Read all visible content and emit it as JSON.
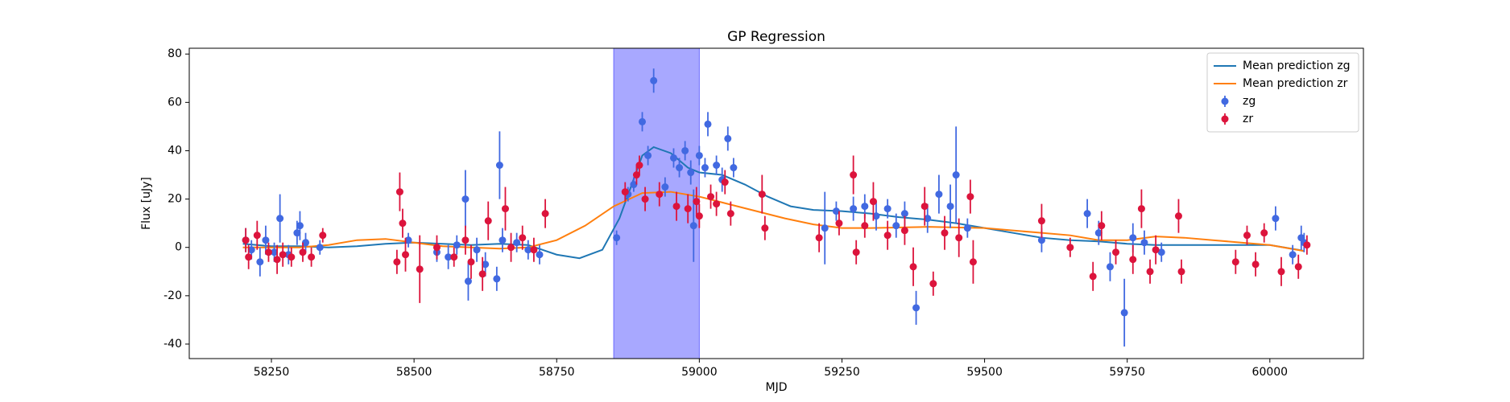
{
  "chart_data": {
    "type": "scatter",
    "title": "GP Regression",
    "xlabel": "MJD",
    "ylabel": "Flux [uJy]",
    "xlim": [
      58106,
      60164
    ],
    "ylim": [
      -46,
      82.4
    ],
    "xticks": [
      58250,
      58500,
      58750,
      59000,
      59250,
      59500,
      59750,
      60000
    ],
    "yticks": [
      -40,
      -20,
      0,
      20,
      40,
      60,
      80
    ],
    "legend": "upper right",
    "span": {
      "x": [
        58850,
        59000
      ],
      "color": "#a8a8ff"
    },
    "series": [
      {
        "name": "Mean prediction zg",
        "type": "line",
        "color": "#1f77b4",
        "x": [
          58200,
          58250,
          58300,
          58350,
          58400,
          58450,
          58500,
          58550,
          58600,
          58650,
          58700,
          58750,
          58790,
          58830,
          58860,
          58880,
          58900,
          58920,
          58950,
          58980,
          59000,
          59040,
          59080,
          59120,
          59160,
          59200,
          59250,
          59300,
          59350,
          59400,
          59450,
          59500,
          59550,
          59600,
          59650,
          59700,
          59750,
          59800,
          59850,
          59900,
          59950,
          60000,
          60050,
          60060
        ],
        "values": [
          1.5,
          0.5,
          0.5,
          0,
          0.5,
          1.5,
          2,
          1.5,
          1,
          1.5,
          1,
          -3,
          -4.5,
          -1,
          12,
          25,
          38,
          41.5,
          39,
          33,
          31,
          30,
          26,
          21,
          17,
          15.5,
          15,
          14,
          12.5,
          11.5,
          10,
          8,
          6,
          4,
          3,
          2.5,
          1.5,
          1,
          1,
          1,
          1,
          1,
          -1,
          -1.5
        ]
      },
      {
        "name": "Mean prediction zr",
        "type": "line",
        "color": "#ff7f0e",
        "x": [
          58200,
          58300,
          58350,
          58400,
          58450,
          58500,
          58550,
          58600,
          58650,
          58700,
          58750,
          58800,
          58850,
          58900,
          58950,
          59000,
          59050,
          59100,
          59150,
          59200,
          59250,
          59300,
          59400,
          59500,
          59600,
          59650,
          59700,
          59750,
          59800,
          59850,
          59900,
          59950,
          60000,
          60060
        ],
        "values": [
          0,
          0,
          1,
          3,
          3.5,
          2,
          0.5,
          0,
          -0.5,
          0,
          3,
          9,
          17,
          22.5,
          23,
          21,
          18,
          15,
          12,
          9.5,
          8,
          8,
          8.5,
          8,
          6,
          5,
          3,
          3,
          4.5,
          4,
          3,
          2,
          1,
          -1.5
        ]
      },
      {
        "name": "zg",
        "type": "errorbar",
        "color": "#4169e1",
        "x": [
          58205,
          58215,
          58230,
          58240,
          58255,
          58265,
          58280,
          58295,
          58300,
          58310,
          58335,
          58490,
          58540,
          58560,
          58575,
          58590,
          58595,
          58610,
          58625,
          58645,
          58650,
          58655,
          58680,
          58700,
          58720,
          58855,
          58875,
          58885,
          58900,
          58910,
          58920,
          58940,
          58955,
          58965,
          58975,
          58985,
          58990,
          59000,
          59010,
          59015,
          59030,
          59040,
          59050,
          59060,
          59220,
          59240,
          59270,
          59290,
          59310,
          59330,
          59345,
          59360,
          59380,
          59400,
          59420,
          59440,
          59450,
          59470,
          59600,
          59680,
          59700,
          59720,
          59745,
          59760,
          59780,
          59810,
          60010,
          60040,
          60055,
          60060
        ],
        "values": [
          3,
          -1,
          -6,
          3,
          -2,
          12,
          -3,
          6,
          9,
          2,
          0,
          3,
          -2,
          -4,
          1,
          20,
          -14,
          -1,
          -7,
          -13,
          34,
          3,
          2,
          -1,
          -3,
          4,
          22,
          26,
          52,
          38,
          69,
          25,
          37,
          33,
          40,
          31,
          9,
          38,
          33,
          51,
          34,
          28,
          45,
          33,
          8,
          15,
          16,
          17,
          13,
          16,
          9,
          14,
          -25,
          12,
          22,
          17,
          30,
          8,
          3,
          14,
          6,
          -8,
          -27,
          4,
          2,
          -2,
          12,
          -3,
          4,
          2
        ],
        "errors": [
          5,
          4,
          6,
          6,
          4,
          10,
          4,
          5,
          6,
          4,
          3,
          3,
          4,
          5,
          4,
          12,
          8,
          5,
          5,
          5,
          14,
          5,
          4,
          4,
          4,
          3,
          3,
          3,
          4,
          4,
          5,
          4,
          4,
          4,
          4,
          5,
          15,
          4,
          4,
          5,
          4,
          5,
          5,
          4,
          15,
          4,
          5,
          5,
          6,
          4,
          5,
          5,
          7,
          6,
          8,
          9,
          20,
          4,
          5,
          6,
          5,
          6,
          14,
          6,
          5,
          4,
          5,
          4,
          5,
          4
        ]
      },
      {
        "name": "zr",
        "type": "errorbar",
        "color": "#dc143c",
        "x": [
          58205,
          58210,
          58225,
          58245,
          58260,
          58270,
          58285,
          58305,
          58320,
          58340,
          58470,
          58475,
          58480,
          58485,
          58510,
          58540,
          58570,
          58590,
          58600,
          58620,
          58630,
          58660,
          58670,
          58690,
          58710,
          58730,
          58870,
          58890,
          58895,
          58905,
          58930,
          58960,
          58980,
          58995,
          59000,
          59020,
          59030,
          59045,
          59055,
          59110,
          59115,
          59210,
          59245,
          59270,
          59275,
          59290,
          59305,
          59330,
          59360,
          59375,
          59395,
          59410,
          59430,
          59455,
          59475,
          59480,
          59600,
          59650,
          59690,
          59705,
          59730,
          59760,
          59775,
          59790,
          59800,
          59840,
          59845,
          59940,
          59960,
          59975,
          59990,
          60020,
          60050,
          60065
        ],
        "values": [
          3,
          -4,
          5,
          -2,
          -5,
          -3,
          -4,
          -2,
          -4,
          5,
          -6,
          23,
          10,
          -3,
          -9,
          0,
          -4,
          3,
          -6,
          -11,
          11,
          16,
          0,
          4,
          -1,
          14,
          23,
          30,
          34,
          20,
          22,
          17,
          16,
          19,
          13,
          21,
          18,
          27,
          14,
          22,
          8,
          4,
          10,
          30,
          -2,
          9,
          19,
          5,
          7,
          -8,
          17,
          -15,
          6,
          4,
          21,
          -6,
          11,
          0,
          -12,
          9,
          -2,
          -5,
          16,
          -10,
          -1,
          13,
          -10,
          -6,
          5,
          -7,
          6,
          -10,
          -8,
          1
        ],
        "errors": [
          5,
          5,
          6,
          4,
          6,
          5,
          4,
          4,
          4,
          3,
          5,
          8,
          6,
          7,
          14,
          5,
          4,
          6,
          7,
          7,
          8,
          9,
          6,
          5,
          5,
          6,
          4,
          4,
          4,
          5,
          5,
          6,
          6,
          6,
          5,
          5,
          5,
          5,
          5,
          8,
          5,
          6,
          5,
          8,
          5,
          5,
          8,
          6,
          6,
          8,
          8,
          5,
          7,
          8,
          7,
          9,
          7,
          4,
          6,
          6,
          5,
          6,
          8,
          5,
          6,
          7,
          5,
          5,
          4,
          5,
          4,
          6,
          5,
          4
        ]
      }
    ]
  }
}
